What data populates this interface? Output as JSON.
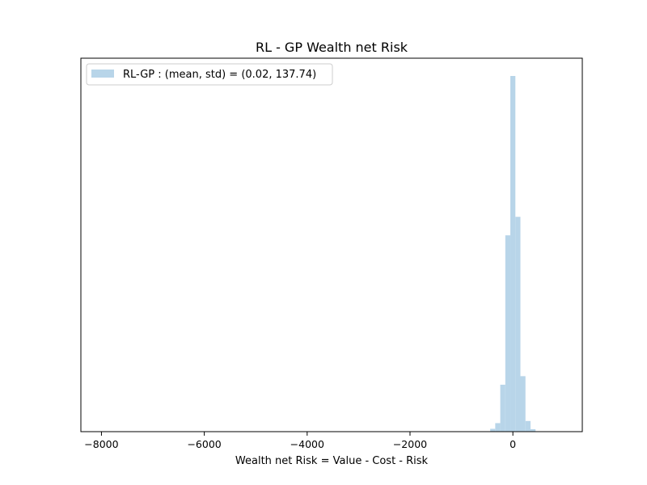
{
  "chart_data": {
    "type": "bar",
    "title": "RL - GP Wealth net Risk",
    "xlabel": "Wealth net Risk = Value - Cost - Risk",
    "ylabel": "",
    "xlim": [
      -8400,
      1350
    ],
    "ylim": [
      0,
      1.05
    ],
    "xticks": [
      -8000,
      -6000,
      -4000,
      -2000,
      0
    ],
    "xtick_labels": [
      "−8000",
      "−6000",
      "−4000",
      "−2000",
      "0"
    ],
    "y_axis_visible": false,
    "grid": false,
    "legend_position": "top-left",
    "series": [
      {
        "name": "RL-GP : (mean, std) = (0.02, 137.74)",
        "color": "#b8d5e9",
        "bin_width": 98,
        "bins": [
          {
            "x0": -441,
            "height": 0.008
          },
          {
            "x0": -343,
            "height": 0.024
          },
          {
            "x0": -245,
            "height": 0.132
          },
          {
            "x0": -147,
            "height": 0.552
          },
          {
            "x0": -49,
            "height": 1.0
          },
          {
            "x0": 49,
            "height": 0.604
          },
          {
            "x0": 147,
            "height": 0.156
          },
          {
            "x0": 245,
            "height": 0.03
          },
          {
            "x0": 343,
            "height": 0.007
          }
        ]
      }
    ]
  }
}
